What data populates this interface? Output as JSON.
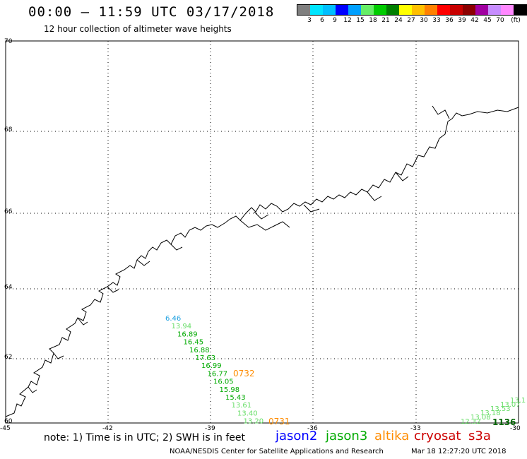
{
  "header": {
    "title": "00:00 – 11:59 UTC 03/17/2018",
    "subtitle": "12 hour collection of altimeter wave heights"
  },
  "color_scale": {
    "colors": [
      "#7f7f7f",
      "#00e5ff",
      "#00bfff",
      "#0000ff",
      "#00a0ff",
      "#66ee66",
      "#00cc00",
      "#007f00",
      "#ffff00",
      "#ffc000",
      "#ff8000",
      "#ff0000",
      "#c80000",
      "#8b0000",
      "#a000a0",
      "#c78dff",
      "#ff88ff",
      "#000000"
    ],
    "labels": [
      "3",
      "6",
      "9",
      "12",
      "15",
      "18",
      "21",
      "24",
      "27",
      "30",
      "33",
      "36",
      "39",
      "42",
      "45",
      "70"
    ],
    "unit": "(ft)"
  },
  "axes": {
    "lat_labels": [
      "70",
      "68",
      "66",
      "64",
      "62",
      "60"
    ],
    "lon_labels": [
      "-45",
      "-42",
      "-39",
      "-36",
      "-33",
      "-30"
    ]
  },
  "tracks": {
    "jason2_color": "#0000ff",
    "jason3_color": "#00aa00",
    "altika_color": "#ff8c00",
    "cryosat_color": "#cc0000",
    "left_track": [
      {
        "v": "6.46",
        "color": "#1ca0e0"
      },
      {
        "v": "13.94",
        "color": "#66dd66"
      },
      {
        "v": "16.89",
        "color": "#00aa00"
      },
      {
        "v": "16.45",
        "color": "#00aa00"
      },
      {
        "v": "16.88",
        "color": "#00aa00"
      },
      {
        "v": "17.63",
        "color": "#00aa00"
      },
      {
        "v": "16.99",
        "color": "#00aa00"
      },
      {
        "v": "16.77",
        "color": "#00aa00"
      },
      {
        "v": "16.05",
        "color": "#00aa00"
      },
      {
        "v": "15.98",
        "color": "#00aa00"
      },
      {
        "v": "15.43",
        "color": "#00aa00"
      },
      {
        "v": "13.61",
        "color": "#66dd66"
      },
      {
        "v": "13.40",
        "color": "#66dd66"
      },
      {
        "v": "13.20",
        "color": "#66dd66"
      }
    ],
    "time_labels": [
      {
        "v": "0732",
        "color": "#ff8c00"
      },
      {
        "v": "0731",
        "color": "#ff8c00"
      },
      {
        "v": "1136",
        "color": "#006400"
      }
    ],
    "right_track": [
      {
        "v": "12.32",
        "color": "#66dd66"
      },
      {
        "v": "13.08",
        "color": "#66dd66"
      },
      {
        "v": "13.18",
        "color": "#66dd66"
      },
      {
        "v": "13.53",
        "color": "#66dd66"
      },
      {
        "v": "13.07",
        "color": "#66dd66"
      },
      {
        "v": "13.1",
        "color": "#66dd66"
      }
    ]
  },
  "footer": {
    "note": "note: 1) Time is in UTC; 2) SWH is in feet",
    "legend": {
      "jason2": "jason2",
      "jason3": "jason3",
      "altika": "altika",
      "cryosat": "cryosat",
      "s3a": "s3a"
    },
    "credit": "NOAA/NESDIS Center for Satellite Applications and Research",
    "timestamp": "Mar 18 12:27:20 UTC 2018"
  }
}
